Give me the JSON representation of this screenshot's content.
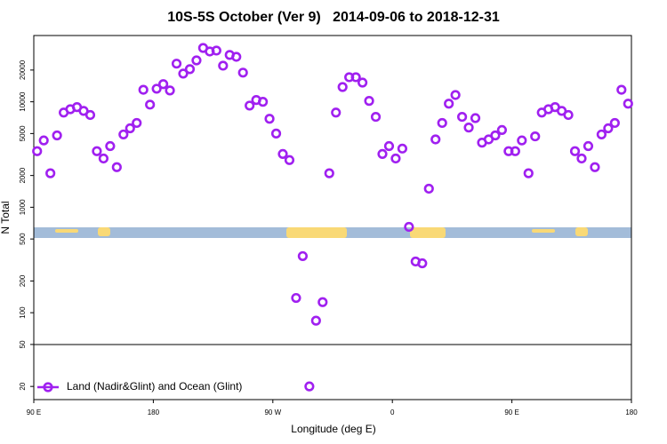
{
  "chart_data": {
    "type": "scatter",
    "title": "10S-5S October (Ver 9)   2014-09-06 to 2018-12-31",
    "x_label": "Longitude (deg E)",
    "y_label": "N Total",
    "log_y": true,
    "legend_position": "lower left",
    "xlim": [
      90,
      540
    ],
    "xticks": [
      {
        "value": 90,
        "label": "90 E"
      },
      180,
      {
        "value": 270,
        "label": "90 W"
      },
      {
        "value": 360,
        "label": "0"
      },
      {
        "value": 450,
        "label": "90 E"
      },
      {
        "value": 540,
        "label": "180"
      }
    ],
    "ylim": [
      15,
      42500
    ],
    "yticks": [
      20,
      50,
      100,
      200,
      500,
      1000,
      2000,
      5000,
      10000,
      20000
    ],
    "series": [
      {
        "name": "Land (Nadir&Glint) and Ocean (Glint)",
        "color": "#a020f0",
        "x": [
          92.5,
          97.5,
          102.5,
          107.5,
          112.5,
          117.5,
          122.5,
          127.5,
          132.5,
          137.5,
          142.5,
          147.5,
          152.5,
          157.5,
          162.5,
          167.5,
          172.5,
          177.5,
          182.5,
          187.5,
          192.5,
          197.5,
          202.5,
          207.5,
          212.5,
          217.5,
          222.5,
          227.5,
          232.5,
          237.5,
          242.5,
          247.5,
          252.5,
          257.5,
          262.5,
          267.5,
          272.5,
          277.5,
          282.5,
          287.5,
          292.5,
          297.5,
          302.5,
          307.5,
          312.5,
          317.5,
          322.5,
          327.5,
          332.5,
          337.5,
          342.5,
          347.5,
          352.5,
          357.5,
          362.5,
          367.5,
          372.5,
          377.5,
          382.5,
          387.5,
          392.5,
          397.5,
          402.5,
          407.5,
          412.5,
          417.5,
          422.5,
          427.5,
          432.5,
          437.5,
          442.5,
          447.5,
          452.5,
          457.5,
          462.5,
          467.5,
          472.5,
          477.5,
          482.5,
          487.5,
          492.5,
          497.5,
          502.5,
          507.5,
          512.5,
          517.5,
          522.5,
          527.5,
          532.5,
          537.5
        ],
        "values": [
          3400,
          4300,
          2100,
          4800,
          7900,
          8500,
          8900,
          8200,
          7500,
          3400,
          2900,
          3800,
          2400,
          4900,
          5600,
          6300,
          13000,
          9400,
          13300,
          14700,
          12800,
          23000,
          18500,
          20400,
          24700,
          32400,
          30000,
          30600,
          22000,
          27800,
          26700,
          18900,
          9200,
          10400,
          10000,
          6900,
          5000,
          3200,
          2800,
          138,
          344,
          20,
          84,
          126,
          2100,
          7900,
          13800,
          17100,
          17100,
          15200,
          10200,
          7200,
          3200,
          3800,
          2900,
          3600,
          652,
          306,
          294,
          1500,
          4400,
          6300,
          9600,
          11600,
          7200,
          5700,
          7000,
          4100,
          4400,
          4800,
          5400,
          3400,
          3400,
          4300,
          2100,
          4700,
          7900,
          8500,
          8900,
          8200,
          7500,
          3400,
          2900,
          3800,
          2400,
          4900,
          5600,
          6300,
          13000,
          9600
        ]
      }
    ]
  }
}
